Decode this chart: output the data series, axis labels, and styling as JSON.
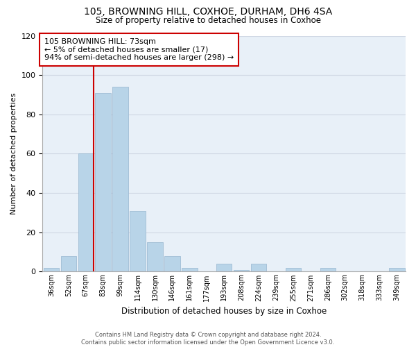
{
  "title": "105, BROWNING HILL, COXHOE, DURHAM, DH6 4SA",
  "subtitle": "Size of property relative to detached houses in Coxhoe",
  "xlabel": "Distribution of detached houses by size in Coxhoe",
  "ylabel": "Number of detached properties",
  "bin_labels": [
    "36sqm",
    "52sqm",
    "67sqm",
    "83sqm",
    "99sqm",
    "114sqm",
    "130sqm",
    "146sqm",
    "161sqm",
    "177sqm",
    "193sqm",
    "208sqm",
    "224sqm",
    "239sqm",
    "255sqm",
    "271sqm",
    "286sqm",
    "302sqm",
    "318sqm",
    "333sqm",
    "349sqm"
  ],
  "bar_heights": [
    2,
    8,
    60,
    91,
    94,
    31,
    15,
    8,
    2,
    0,
    4,
    1,
    4,
    0,
    2,
    0,
    2,
    0,
    0,
    0,
    2
  ],
  "bar_color": "#b8d4e8",
  "bar_edge_color": "#a0bcd4",
  "vline_x_index": 2,
  "vline_color": "#cc0000",
  "annotation_text": "105 BROWNING HILL: 73sqm\n← 5% of detached houses are smaller (17)\n94% of semi-detached houses are larger (298) →",
  "annotation_box_color": "#ffffff",
  "annotation_box_edgecolor": "#cc0000",
  "ylim": [
    0,
    120
  ],
  "yticks": [
    0,
    20,
    40,
    60,
    80,
    100,
    120
  ],
  "footer_text": "Contains HM Land Registry data © Crown copyright and database right 2024.\nContains public sector information licensed under the Open Government Licence v3.0.",
  "background_color": "#ffffff",
  "grid_color": "#d0d8e4",
  "plot_bg_color": "#e8f0f8"
}
